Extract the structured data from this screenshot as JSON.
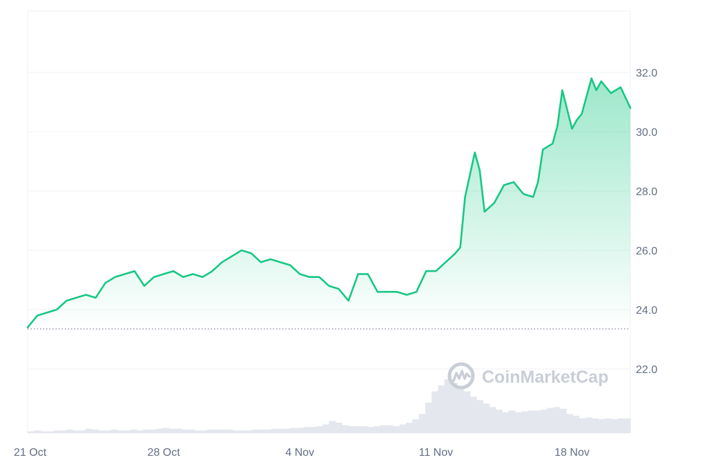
{
  "watermark": {
    "text": "CoinMarketCap"
  },
  "colors": {
    "line": "#16c784",
    "area_top": "#16c784",
    "grid": "#eff2f5",
    "reference_line": "#858ca2",
    "volume": "#e4e8ee",
    "tick_text": "#616e85"
  },
  "chart_data": {
    "type": "area",
    "x_axis": {
      "range": [
        "2024-10-21",
        "2024-11-21"
      ],
      "ticks": [
        {
          "date": "2024-10-21",
          "label": "21 Oct"
        },
        {
          "date": "2024-10-28",
          "label": "28 Oct"
        },
        {
          "date": "2024-11-04",
          "label": "4 Nov"
        },
        {
          "date": "2024-11-11",
          "label": "11 Nov"
        },
        {
          "date": "2024-11-18",
          "label": "18 Nov"
        }
      ]
    },
    "y_axis": {
      "position": "right",
      "range": [
        20.0,
        34.0
      ],
      "ticks": [
        "22.0",
        "24.0",
        "26.0",
        "28.0",
        "30.0",
        "32.0"
      ]
    },
    "grid": true,
    "reference_line": {
      "value": 23.35,
      "style": "dotted"
    },
    "series": [
      {
        "points": [
          [
            "2024-10-21",
            23.4
          ],
          [
            "2024-10-21T12",
            23.8
          ],
          [
            "2024-10-22",
            23.9
          ],
          [
            "2024-10-22T12",
            24.0
          ],
          [
            "2024-10-23",
            24.3
          ],
          [
            "2024-10-23T12",
            24.4
          ],
          [
            "2024-10-24",
            24.5
          ],
          [
            "2024-10-24T12",
            24.4
          ],
          [
            "2024-10-25",
            24.9
          ],
          [
            "2024-10-25T12",
            25.1
          ],
          [
            "2024-10-26",
            25.2
          ],
          [
            "2024-10-26T12",
            25.3
          ],
          [
            "2024-10-27",
            24.8
          ],
          [
            "2024-10-27T12",
            25.1
          ],
          [
            "2024-10-28",
            25.2
          ],
          [
            "2024-10-28T12",
            25.3
          ],
          [
            "2024-10-29",
            25.1
          ],
          [
            "2024-10-29T12",
            25.2
          ],
          [
            "2024-10-30",
            25.1
          ],
          [
            "2024-10-30T12",
            25.3
          ],
          [
            "2024-10-31",
            25.6
          ],
          [
            "2024-10-31T12",
            25.8
          ],
          [
            "2024-11-01",
            26.0
          ],
          [
            "2024-11-01T12",
            25.9
          ],
          [
            "2024-11-02",
            25.6
          ],
          [
            "2024-11-02T12",
            25.7
          ],
          [
            "2024-11-03",
            25.6
          ],
          [
            "2024-11-03T12",
            25.5
          ],
          [
            "2024-11-04",
            25.2
          ],
          [
            "2024-11-04T12",
            25.1
          ],
          [
            "2024-11-05",
            25.1
          ],
          [
            "2024-11-05T12",
            24.8
          ],
          [
            "2024-11-06",
            24.7
          ],
          [
            "2024-11-06T12",
            24.3
          ],
          [
            "2024-11-07",
            25.2
          ],
          [
            "2024-11-07T12",
            25.2
          ],
          [
            "2024-11-08",
            24.6
          ],
          [
            "2024-11-08T12",
            24.6
          ],
          [
            "2024-11-09",
            24.6
          ],
          [
            "2024-11-09T12",
            24.5
          ],
          [
            "2024-11-10",
            24.6
          ],
          [
            "2024-11-10T12",
            25.3
          ],
          [
            "2024-11-11",
            25.3
          ],
          [
            "2024-11-11T12",
            25.6
          ],
          [
            "2024-11-12",
            25.9
          ],
          [
            "2024-11-12T06",
            26.1
          ],
          [
            "2024-11-12T12",
            27.8
          ],
          [
            "2024-11-13",
            29.3
          ],
          [
            "2024-11-13T06",
            28.7
          ],
          [
            "2024-11-13T12",
            27.3
          ],
          [
            "2024-11-14",
            27.6
          ],
          [
            "2024-11-14T12",
            28.2
          ],
          [
            "2024-11-15",
            28.3
          ],
          [
            "2024-11-15T12",
            27.9
          ],
          [
            "2024-11-16",
            27.8
          ],
          [
            "2024-11-16T06",
            28.3
          ],
          [
            "2024-11-16T12",
            29.4
          ],
          [
            "2024-11-17",
            29.6
          ],
          [
            "2024-11-17T06",
            30.2
          ],
          [
            "2024-11-17T12",
            31.4
          ],
          [
            "2024-11-18",
            30.1
          ],
          [
            "2024-11-18T06",
            30.4
          ],
          [
            "2024-11-18T12",
            30.6
          ],
          [
            "2024-11-19",
            31.8
          ],
          [
            "2024-11-19T06",
            31.4
          ],
          [
            "2024-11-19T12",
            31.7
          ],
          [
            "2024-11-20",
            31.3
          ],
          [
            "2024-11-20T12",
            31.5
          ],
          [
            "2024-11-21",
            30.8
          ]
        ]
      }
    ],
    "volume": {
      "values": [
        2,
        3,
        2,
        2,
        3,
        3,
        4,
        3,
        3,
        5,
        4,
        3,
        3,
        4,
        3,
        3,
        4,
        3,
        4,
        4,
        5,
        6,
        5,
        5,
        4,
        4,
        3,
        3,
        4,
        4,
        4,
        4,
        3,
        3,
        3,
        4,
        4,
        4,
        5,
        5,
        5,
        6,
        6,
        7,
        7,
        8,
        10,
        14,
        12,
        9,
        8,
        8,
        8,
        7,
        8,
        9,
        9,
        8,
        10,
        12,
        16,
        22,
        35,
        48,
        55,
        62,
        58,
        52,
        48,
        42,
        38,
        34,
        30,
        27,
        24,
        26,
        24,
        25,
        26,
        26,
        27,
        29,
        30,
        28,
        22,
        20,
        17,
        18,
        17,
        16,
        17,
        16,
        17,
        17
      ]
    }
  }
}
